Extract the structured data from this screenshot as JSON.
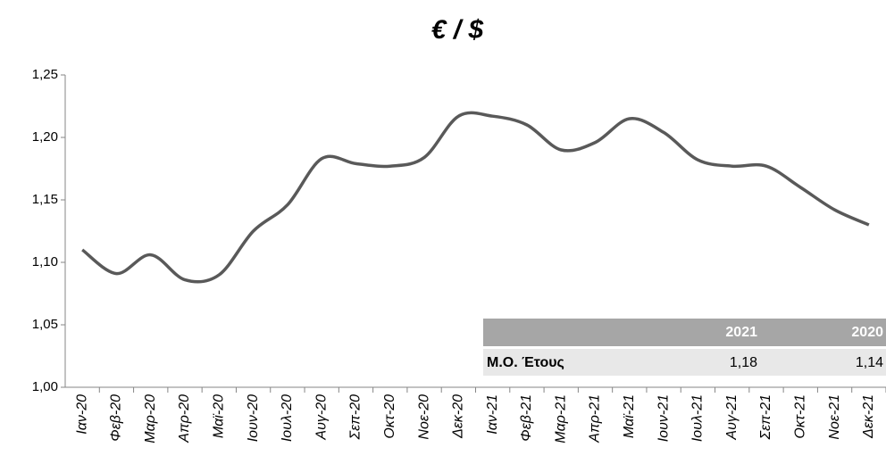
{
  "chart_data": {
    "type": "line",
    "title": "€ / $",
    "categories": [
      "Ιαν-20",
      "Φεβ-20",
      "Μαρ-20",
      "Απρ-20",
      "Μαϊ-20",
      "Ιουν-20",
      "Ιουλ-20",
      "Αυγ-20",
      "Σεπ-20",
      "Οκτ-20",
      "Νοε-20",
      "Δεκ-20",
      "Ιαν-21",
      "Φεβ-21",
      "Μαρ-21",
      "Απρ-21",
      "Μαϊ-21",
      "Ιουν-21",
      "Ιουλ-21",
      "Αυγ-21",
      "Σεπ-21",
      "Οκτ-21",
      "Νοε-21",
      "Δεκ-21"
    ],
    "series": [
      {
        "name": "€ / $",
        "color": "#595959",
        "values": [
          1.11,
          1.091,
          1.106,
          1.086,
          1.09,
          1.125,
          1.146,
          1.183,
          1.179,
          1.177,
          1.184,
          1.217,
          1.217,
          1.21,
          1.19,
          1.196,
          1.215,
          1.204,
          1.182,
          1.177,
          1.177,
          1.16,
          1.142,
          1.13
        ]
      }
    ],
    "ylim": [
      1.0,
      1.25
    ],
    "yticks": [
      {
        "value": 1.0,
        "label": "1,00"
      },
      {
        "value": 1.05,
        "label": "1,05"
      },
      {
        "value": 1.1,
        "label": "1,10"
      },
      {
        "value": 1.15,
        "label": "1,15"
      },
      {
        "value": 1.2,
        "label": "1,20"
      },
      {
        "value": 1.25,
        "label": "1,25"
      }
    ],
    "grid": false,
    "table": {
      "header": [
        "2021",
        "2020"
      ],
      "row_label": "Μ.Ο. Έτους",
      "row": [
        "1,18",
        "1,14"
      ]
    }
  }
}
